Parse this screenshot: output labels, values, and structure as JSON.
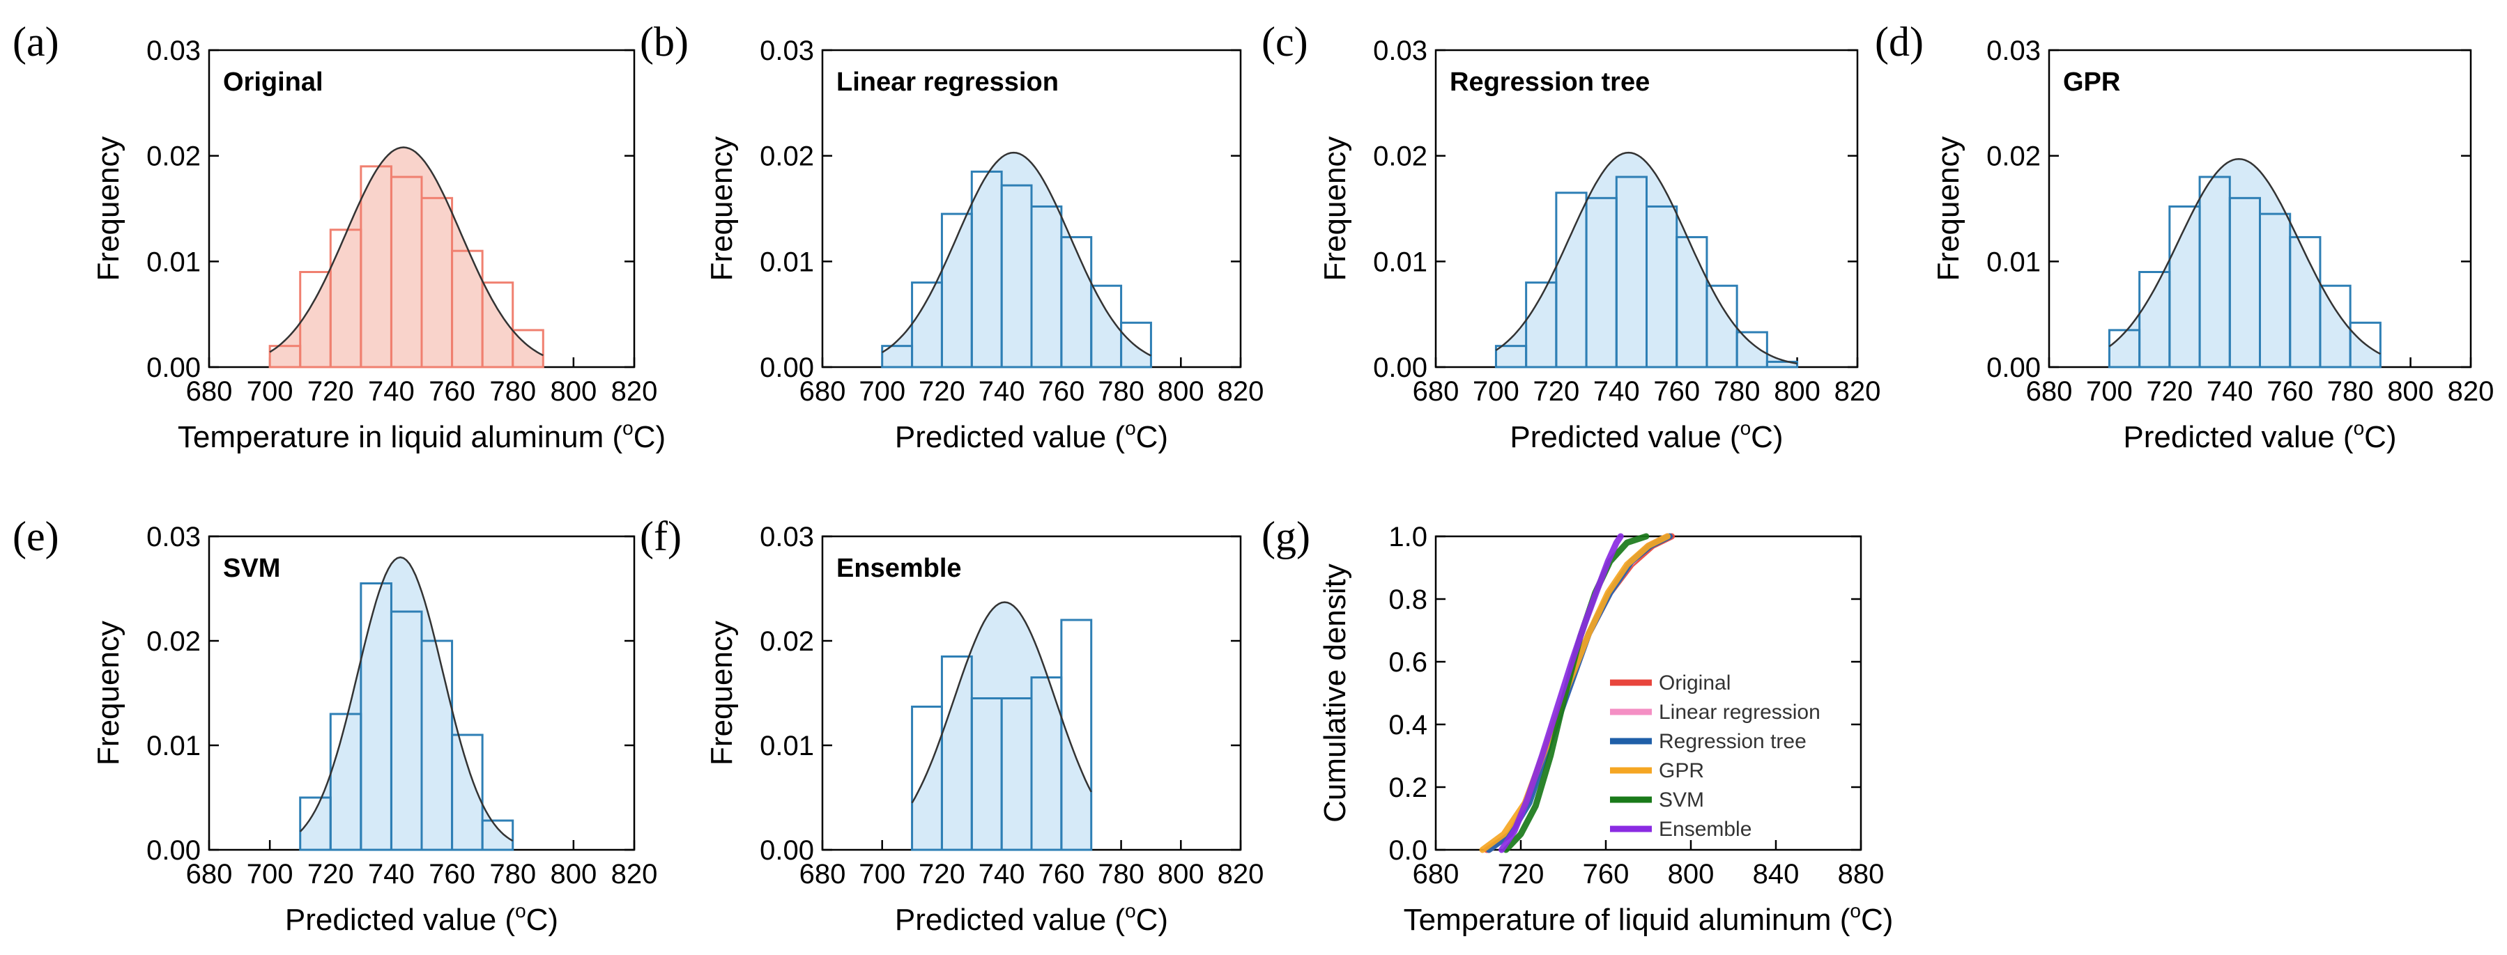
{
  "chart_data": [
    {
      "id": "a",
      "panel_label": "(a)",
      "type": "histogram",
      "title": "Original",
      "xlabel_prefix": "Temperature in liquid aluminum (",
      "xlabel_sup": "o",
      "xlabel_suffix": "C)",
      "ylabel": "Frequency",
      "xlim": [
        680,
        820
      ],
      "ylim": [
        0,
        0.03
      ],
      "xticks": [
        "680",
        "700",
        "720",
        "740",
        "760",
        "780",
        "800",
        "820"
      ],
      "yticks": [
        "0.00",
        "0.01",
        "0.02",
        "0.03"
      ],
      "bin_width": 10,
      "bins": [
        700,
        710,
        720,
        730,
        740,
        750,
        760,
        770,
        780
      ],
      "values": [
        0.002,
        0.009,
        0.013,
        0.019,
        0.018,
        0.016,
        0.011,
        0.008,
        0.0035
      ],
      "fit": {
        "mean": 744,
        "sd": 19,
        "peak": 0.0208,
        "from": 700,
        "to": 790
      },
      "bar_color": "#f08070",
      "bar_fill": "#f9d3cb"
    },
    {
      "id": "b",
      "panel_label": "(b)",
      "type": "histogram",
      "title": "Linear regression",
      "xlabel_prefix": "Predicted value (",
      "xlabel_sup": "o",
      "xlabel_suffix": "C)",
      "ylabel": "Frequency",
      "xlim": [
        680,
        820
      ],
      "ylim": [
        0,
        0.03
      ],
      "xticks": [
        "680",
        "700",
        "720",
        "740",
        "760",
        "780",
        "800",
        "820"
      ],
      "yticks": [
        "0.00",
        "0.01",
        "0.02",
        "0.03"
      ],
      "bin_width": 10,
      "bins": [
        700,
        710,
        720,
        730,
        740,
        750,
        760,
        770,
        780
      ],
      "values": [
        0.002,
        0.008,
        0.0145,
        0.0185,
        0.0172,
        0.0152,
        0.0123,
        0.0077,
        0.0042
      ],
      "fit": {
        "mean": 744,
        "sd": 19,
        "peak": 0.0203,
        "from": 700,
        "to": 790
      },
      "bar_color": "#2e7fb5",
      "bar_fill": "#d6eaf8"
    },
    {
      "id": "c",
      "panel_label": "(c)",
      "type": "histogram",
      "title": "Regression tree",
      "xlabel_prefix": "Predicted value (",
      "xlabel_sup": "o",
      "xlabel_suffix": "C)",
      "ylabel": "Frequency",
      "xlim": [
        680,
        820
      ],
      "ylim": [
        0,
        0.03
      ],
      "xticks": [
        "680",
        "700",
        "720",
        "740",
        "760",
        "780",
        "800",
        "820"
      ],
      "yticks": [
        "0.00",
        "0.01",
        "0.02",
        "0.03"
      ],
      "bin_width": 10,
      "bins": [
        700,
        710,
        720,
        730,
        740,
        750,
        760,
        770,
        780,
        790
      ],
      "values": [
        0.002,
        0.008,
        0.0165,
        0.016,
        0.018,
        0.0152,
        0.0123,
        0.0077,
        0.0033,
        0.0005
      ],
      "fit": {
        "mean": 744,
        "sd": 19.5,
        "peak": 0.0203,
        "from": 700,
        "to": 800
      },
      "bar_color": "#2e7fb5",
      "bar_fill": "#d6eaf8"
    },
    {
      "id": "d",
      "panel_label": "(d)",
      "type": "histogram",
      "title": "GPR",
      "xlabel_prefix": "Predicted value (",
      "xlabel_sup": "o",
      "xlabel_suffix": "C)",
      "ylabel": "Frequency",
      "xlim": [
        680,
        820
      ],
      "ylim": [
        0,
        0.03
      ],
      "xticks": [
        "680",
        "700",
        "720",
        "740",
        "760",
        "780",
        "800",
        "820"
      ],
      "yticks": [
        "0.00",
        "0.01",
        "0.02",
        "0.03"
      ],
      "bin_width": 10,
      "bins": [
        700,
        710,
        720,
        730,
        740,
        750,
        760,
        770,
        780
      ],
      "values": [
        0.0035,
        0.009,
        0.0152,
        0.018,
        0.016,
        0.0145,
        0.0123,
        0.0077,
        0.0042
      ],
      "fit": {
        "mean": 743,
        "sd": 20,
        "peak": 0.0197,
        "from": 700,
        "to": 790
      },
      "bar_color": "#2e7fb5",
      "bar_fill": "#d6eaf8"
    },
    {
      "id": "e",
      "panel_label": "(e)",
      "type": "histogram",
      "title": "SVM",
      "xlabel_prefix": "Predicted value (",
      "xlabel_sup": "o",
      "xlabel_suffix": "C)",
      "ylabel": "Frequency",
      "xlim": [
        680,
        820
      ],
      "ylim": [
        0,
        0.03
      ],
      "xticks": [
        "680",
        "700",
        "720",
        "740",
        "760",
        "780",
        "800",
        "820"
      ],
      "yticks": [
        "0.00",
        "0.01",
        "0.02",
        "0.03"
      ],
      "bin_width": 10,
      "bins": [
        710,
        720,
        730,
        740,
        750,
        760,
        770
      ],
      "values": [
        0.005,
        0.013,
        0.0255,
        0.0228,
        0.02,
        0.011,
        0.0028
      ],
      "fit": {
        "mean": 743,
        "sd": 14,
        "peak": 0.028,
        "from": 710,
        "to": 780
      },
      "bar_color": "#2e7fb5",
      "bar_fill": "#d6eaf8"
    },
    {
      "id": "f",
      "panel_label": "(f)",
      "type": "histogram",
      "title": "Ensemble",
      "xlabel_prefix": "Predicted value (",
      "xlabel_sup": "o",
      "xlabel_suffix": "C)",
      "ylabel": "Frequency",
      "xlim": [
        680,
        820
      ],
      "ylim": [
        0,
        0.03
      ],
      "xticks": [
        "680",
        "700",
        "720",
        "740",
        "760",
        "780",
        "800",
        "820"
      ],
      "yticks": [
        "0.00",
        "0.01",
        "0.02",
        "0.03"
      ],
      "bin_width": 10,
      "bins": [
        710,
        720,
        730,
        740,
        750,
        760
      ],
      "values": [
        0.0137,
        0.0185,
        0.0145,
        0.0145,
        0.0165,
        0.022
      ],
      "fit": {
        "mean": 741,
        "sd": 17,
        "peak": 0.0237,
        "from": 710,
        "to": 770
      },
      "bar_color": "#2e7fb5",
      "bar_fill": "#d6eaf8"
    },
    {
      "id": "g",
      "panel_label": "(g)",
      "type": "line",
      "xlabel_prefix": "Temperature of liquid aluminum (",
      "xlabel_sup": "o",
      "xlabel_suffix": "C)",
      "ylabel": "Cumulative density",
      "xlim": [
        680,
        880
      ],
      "ylim": [
        0,
        1.0
      ],
      "xticks": [
        "680",
        "720",
        "760",
        "800",
        "840",
        "880"
      ],
      "yticks": [
        "0.0",
        "0.2",
        "0.4",
        "0.6",
        "0.8",
        "1.0"
      ],
      "legend_position": "lower-right",
      "series": [
        {
          "name": "Original",
          "color": "#e8453c",
          "x": [
            704,
            715,
            722,
            732,
            742,
            752,
            762,
            772,
            782,
            791
          ],
          "y": [
            0.0,
            0.05,
            0.14,
            0.32,
            0.52,
            0.69,
            0.82,
            0.91,
            0.97,
            1.0
          ]
        },
        {
          "name": "Linear regression",
          "color": "#f48fc4",
          "x": [
            705,
            715,
            723,
            733,
            743,
            752,
            762,
            771,
            780,
            789
          ],
          "y": [
            0.0,
            0.05,
            0.15,
            0.33,
            0.52,
            0.69,
            0.82,
            0.91,
            0.97,
            1.0
          ]
        },
        {
          "name": "Regression tree",
          "color": "#1f5fa8",
          "x": [
            705,
            715,
            724,
            733,
            743,
            752,
            762,
            772,
            781,
            790
          ],
          "y": [
            0.0,
            0.05,
            0.15,
            0.33,
            0.52,
            0.69,
            0.82,
            0.92,
            0.97,
            1.0
          ]
        },
        {
          "name": "GPR",
          "color": "#f5a623",
          "x": [
            702,
            712,
            722,
            732,
            742,
            752,
            761,
            770,
            780,
            789
          ],
          "y": [
            0.0,
            0.05,
            0.15,
            0.33,
            0.52,
            0.69,
            0.82,
            0.91,
            0.97,
            1.0
          ]
        },
        {
          "name": "SVM",
          "color": "#1a7a1a",
          "x": [
            713,
            720,
            727,
            734,
            741,
            748,
            755,
            762,
            770,
            779
          ],
          "y": [
            0.0,
            0.05,
            0.14,
            0.3,
            0.5,
            0.68,
            0.82,
            0.92,
            0.98,
            1.0
          ]
        },
        {
          "name": "Ensemble",
          "color": "#8a2be2",
          "x": [
            711,
            717,
            723,
            730,
            737,
            744,
            750,
            756,
            761,
            765,
            767
          ],
          "y": [
            0.0,
            0.06,
            0.16,
            0.3,
            0.45,
            0.6,
            0.72,
            0.83,
            0.92,
            0.98,
            1.0
          ]
        }
      ]
    }
  ]
}
